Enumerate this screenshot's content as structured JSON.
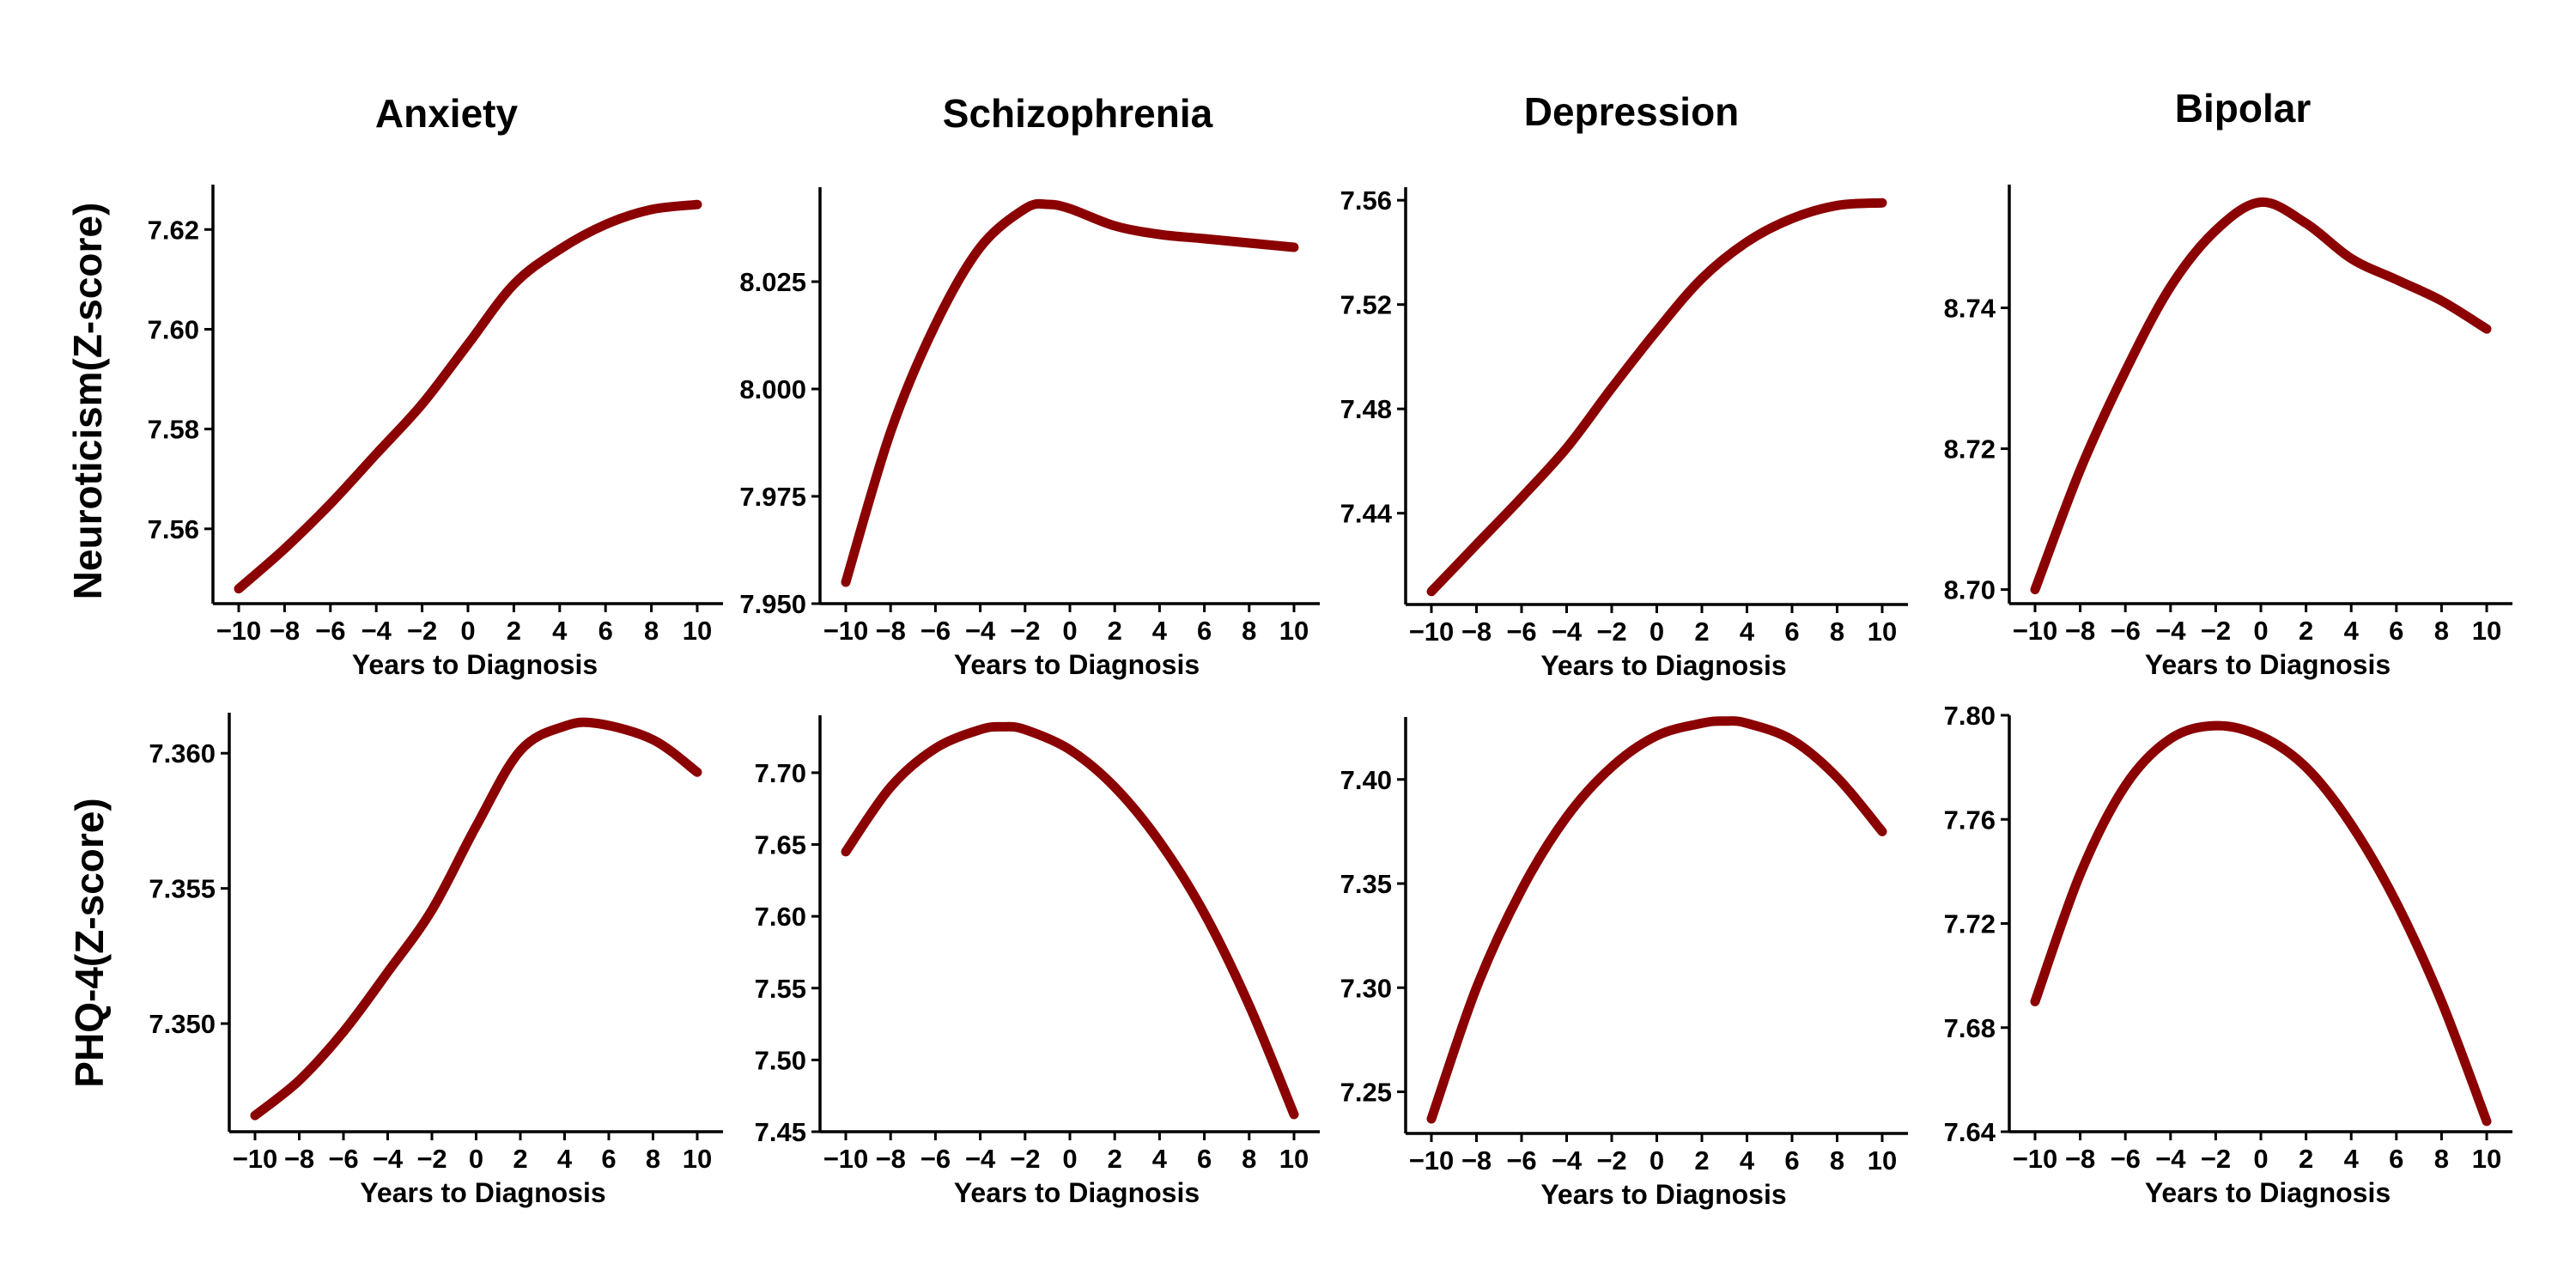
{
  "column_titles": [
    "Anxiety",
    "Schizophrenia",
    "Depression",
    "Bipolar"
  ],
  "row_titles": [
    "Neuroticism(Z-score)",
    "PHQ-4(Z-score)"
  ],
  "colors": {
    "line": "#8b0000",
    "axis": "#000000"
  },
  "chart_data": [
    {
      "type": "line",
      "row": 0,
      "col": 0,
      "title": "Anxiety",
      "xlabel": "Years to Diagnosis",
      "ylabel": "Neuroticism(Z-score)",
      "xlim": [
        -10,
        10
      ],
      "ylim": [
        7.545,
        7.629
      ],
      "x_ticks": [
        -10,
        -8,
        -6,
        -4,
        -2,
        0,
        2,
        4,
        6,
        8,
        10
      ],
      "x_tick_labels": [
        "−10",
        "−8",
        "−6",
        "−4",
        "−2",
        "0",
        "2",
        "4",
        "6",
        "8",
        "10"
      ],
      "y_ticks": [
        7.56,
        7.58,
        7.6,
        7.62
      ],
      "y_tick_labels": [
        "7.56",
        "7.58",
        "7.60",
        "7.62"
      ],
      "x": [
        -10,
        -8,
        -6,
        -4,
        -2,
        0,
        2,
        4,
        6,
        8,
        10
      ],
      "y": [
        7.548,
        7.556,
        7.565,
        7.575,
        7.585,
        7.597,
        7.609,
        7.616,
        7.621,
        7.624,
        7.625
      ]
    },
    {
      "type": "line",
      "row": 0,
      "col": 1,
      "title": "Schizophrenia",
      "xlabel": "Years to Diagnosis",
      "ylabel": "Neuroticism(Z-score)",
      "xlim": [
        -10,
        10
      ],
      "ylim": [
        7.95,
        8.047
      ],
      "x_ticks": [
        -10,
        -8,
        -6,
        -4,
        -2,
        0,
        2,
        4,
        6,
        8,
        10
      ],
      "x_tick_labels": [
        "−10",
        "−8",
        "−6",
        "−4",
        "−2",
        "0",
        "2",
        "4",
        "6",
        "8",
        "10"
      ],
      "y_ticks": [
        7.95,
        7.975,
        8.0,
        8.025
      ],
      "y_tick_labels": [
        "7.950",
        "7.975",
        "8.000",
        "8.025"
      ],
      "x": [
        -10,
        -8,
        -6,
        -4,
        -2,
        -1,
        0,
        2,
        4,
        6,
        8,
        10
      ],
      "y": [
        7.955,
        7.99,
        8.015,
        8.033,
        8.042,
        8.043,
        8.042,
        8.038,
        8.036,
        8.035,
        8.034,
        8.033
      ]
    },
    {
      "type": "line",
      "row": 0,
      "col": 2,
      "title": "Depression",
      "xlabel": "Years to Diagnosis",
      "ylabel": "Neuroticism(Z-score)",
      "xlim": [
        -10,
        10
      ],
      "ylim": [
        7.405,
        7.565
      ],
      "x_ticks": [
        -10,
        -8,
        -6,
        -4,
        -2,
        0,
        2,
        4,
        6,
        8,
        10
      ],
      "x_tick_labels": [
        "−10",
        "−8",
        "−6",
        "−4",
        "−2",
        "0",
        "2",
        "4",
        "6",
        "8",
        "10"
      ],
      "y_ticks": [
        7.44,
        7.48,
        7.52,
        7.56
      ],
      "y_tick_labels": [
        "7.44",
        "7.48",
        "7.52",
        "7.56"
      ],
      "x": [
        -10,
        -8,
        -6,
        -4,
        -2,
        0,
        2,
        4,
        6,
        8,
        10
      ],
      "y": [
        7.41,
        7.428,
        7.446,
        7.465,
        7.488,
        7.51,
        7.53,
        7.544,
        7.553,
        7.558,
        7.559
      ]
    },
    {
      "type": "line",
      "row": 0,
      "col": 3,
      "title": "Bipolar",
      "xlabel": "Years to Diagnosis",
      "ylabel": "Neuroticism(Z-score)",
      "xlim": [
        -10,
        10
      ],
      "ylim": [
        8.698,
        8.7575
      ],
      "x_ticks": [
        -10,
        -8,
        -6,
        -4,
        -2,
        0,
        2,
        4,
        6,
        8,
        10
      ],
      "x_tick_labels": [
        "−10",
        "−8",
        "−6",
        "−4",
        "−2",
        "0",
        "2",
        "4",
        "6",
        "8",
        "10"
      ],
      "y_ticks": [
        8.7,
        8.72,
        8.74
      ],
      "y_tick_labels": [
        "8.70",
        "8.72",
        "8.74"
      ],
      "x": [
        -10,
        -8,
        -6,
        -4,
        -2,
        0,
        2,
        4,
        6,
        8,
        10
      ],
      "y": [
        8.7,
        8.717,
        8.731,
        8.743,
        8.751,
        8.755,
        8.752,
        8.747,
        8.744,
        8.741,
        8.737
      ]
    },
    {
      "type": "line",
      "row": 1,
      "col": 0,
      "title": "Anxiety",
      "xlabel": "Years to Diagnosis",
      "ylabel": "PHQ-4(Z-score)",
      "xlim": [
        -10,
        10
      ],
      "ylim": [
        7.346,
        7.3615
      ],
      "x_ticks": [
        -10,
        -8,
        -6,
        -4,
        -2,
        0,
        2,
        4,
        6,
        8,
        10
      ],
      "x_tick_labels": [
        "−10",
        "−8",
        "−6",
        "−4",
        "−2",
        "0",
        "2",
        "4",
        "6",
        "8",
        "10"
      ],
      "y_ticks": [
        7.35,
        7.355,
        7.36
      ],
      "y_tick_labels": [
        "7.350",
        "7.355",
        "7.360"
      ],
      "x": [
        -10,
        -8,
        -6,
        -4,
        -2,
        0,
        2,
        4,
        5.5,
        8,
        10
      ],
      "y": [
        7.3466,
        7.3479,
        7.3497,
        7.3519,
        7.3542,
        7.3573,
        7.3601,
        7.361,
        7.3611,
        7.3605,
        7.3593
      ]
    },
    {
      "type": "line",
      "row": 1,
      "col": 1,
      "title": "Schizophrenia",
      "xlabel": "Years to Diagnosis",
      "ylabel": "PHQ-4(Z-score)",
      "xlim": [
        -10,
        10
      ],
      "ylim": [
        7.45,
        7.74
      ],
      "x_ticks": [
        -10,
        -8,
        -6,
        -4,
        -2,
        0,
        2,
        4,
        6,
        8,
        10
      ],
      "x_tick_labels": [
        "−10",
        "−8",
        "−6",
        "−4",
        "−2",
        "0",
        "2",
        "4",
        "6",
        "8",
        "10"
      ],
      "y_ticks": [
        7.45,
        7.5,
        7.55,
        7.6,
        7.65,
        7.7
      ],
      "y_tick_labels": [
        "7.45",
        "7.50",
        "7.55",
        "7.60",
        "7.65",
        "7.70"
      ],
      "x": [
        -10,
        -8,
        -6,
        -4,
        -3,
        -2,
        0,
        2,
        4,
        6,
        8,
        10
      ],
      "y": [
        7.645,
        7.69,
        7.717,
        7.73,
        7.732,
        7.73,
        7.716,
        7.69,
        7.652,
        7.602,
        7.538,
        7.462
      ]
    },
    {
      "type": "line",
      "row": 1,
      "col": 2,
      "title": "Depression",
      "xlabel": "Years to Diagnosis",
      "ylabel": "PHQ-4(Z-score)",
      "xlim": [
        -10,
        10
      ],
      "ylim": [
        7.23,
        7.43
      ],
      "x_ticks": [
        -10,
        -8,
        -6,
        -4,
        -2,
        0,
        2,
        4,
        6,
        8,
        10
      ],
      "x_tick_labels": [
        "−10",
        "−8",
        "−6",
        "−4",
        "−2",
        "0",
        "2",
        "4",
        "6",
        "8",
        "10"
      ],
      "y_ticks": [
        7.25,
        7.3,
        7.35,
        7.4
      ],
      "y_tick_labels": [
        "7.25",
        "7.30",
        "7.35",
        "7.40"
      ],
      "x": [
        -10,
        -8,
        -6,
        -4,
        -2,
        0,
        2,
        3,
        4,
        6,
        8,
        10
      ],
      "y": [
        7.237,
        7.3,
        7.347,
        7.382,
        7.406,
        7.421,
        7.427,
        7.428,
        7.427,
        7.419,
        7.401,
        7.375
      ]
    },
    {
      "type": "line",
      "row": 1,
      "col": 3,
      "title": "Bipolar",
      "xlabel": "Years to Diagnosis",
      "ylabel": "PHQ-4(Z-score)",
      "xlim": [
        -10,
        10
      ],
      "ylim": [
        7.64,
        7.8
      ],
      "x_ticks": [
        -10,
        -8,
        -6,
        -4,
        -2,
        0,
        2,
        4,
        6,
        8,
        10
      ],
      "x_tick_labels": [
        "−10",
        "−8",
        "−6",
        "−4",
        "−2",
        "0",
        "2",
        "4",
        "6",
        "8",
        "10"
      ],
      "y_ticks": [
        7.64,
        7.68,
        7.72,
        7.76,
        7.8
      ],
      "y_tick_labels": [
        "7.64",
        "7.68",
        "7.72",
        "7.76",
        "7.80"
      ],
      "x": [
        -10,
        -8,
        -6,
        -4,
        -2,
        0,
        2,
        4,
        6,
        8,
        10
      ],
      "y": [
        7.69,
        7.739,
        7.773,
        7.791,
        7.796,
        7.792,
        7.78,
        7.758,
        7.728,
        7.69,
        7.644
      ]
    }
  ]
}
